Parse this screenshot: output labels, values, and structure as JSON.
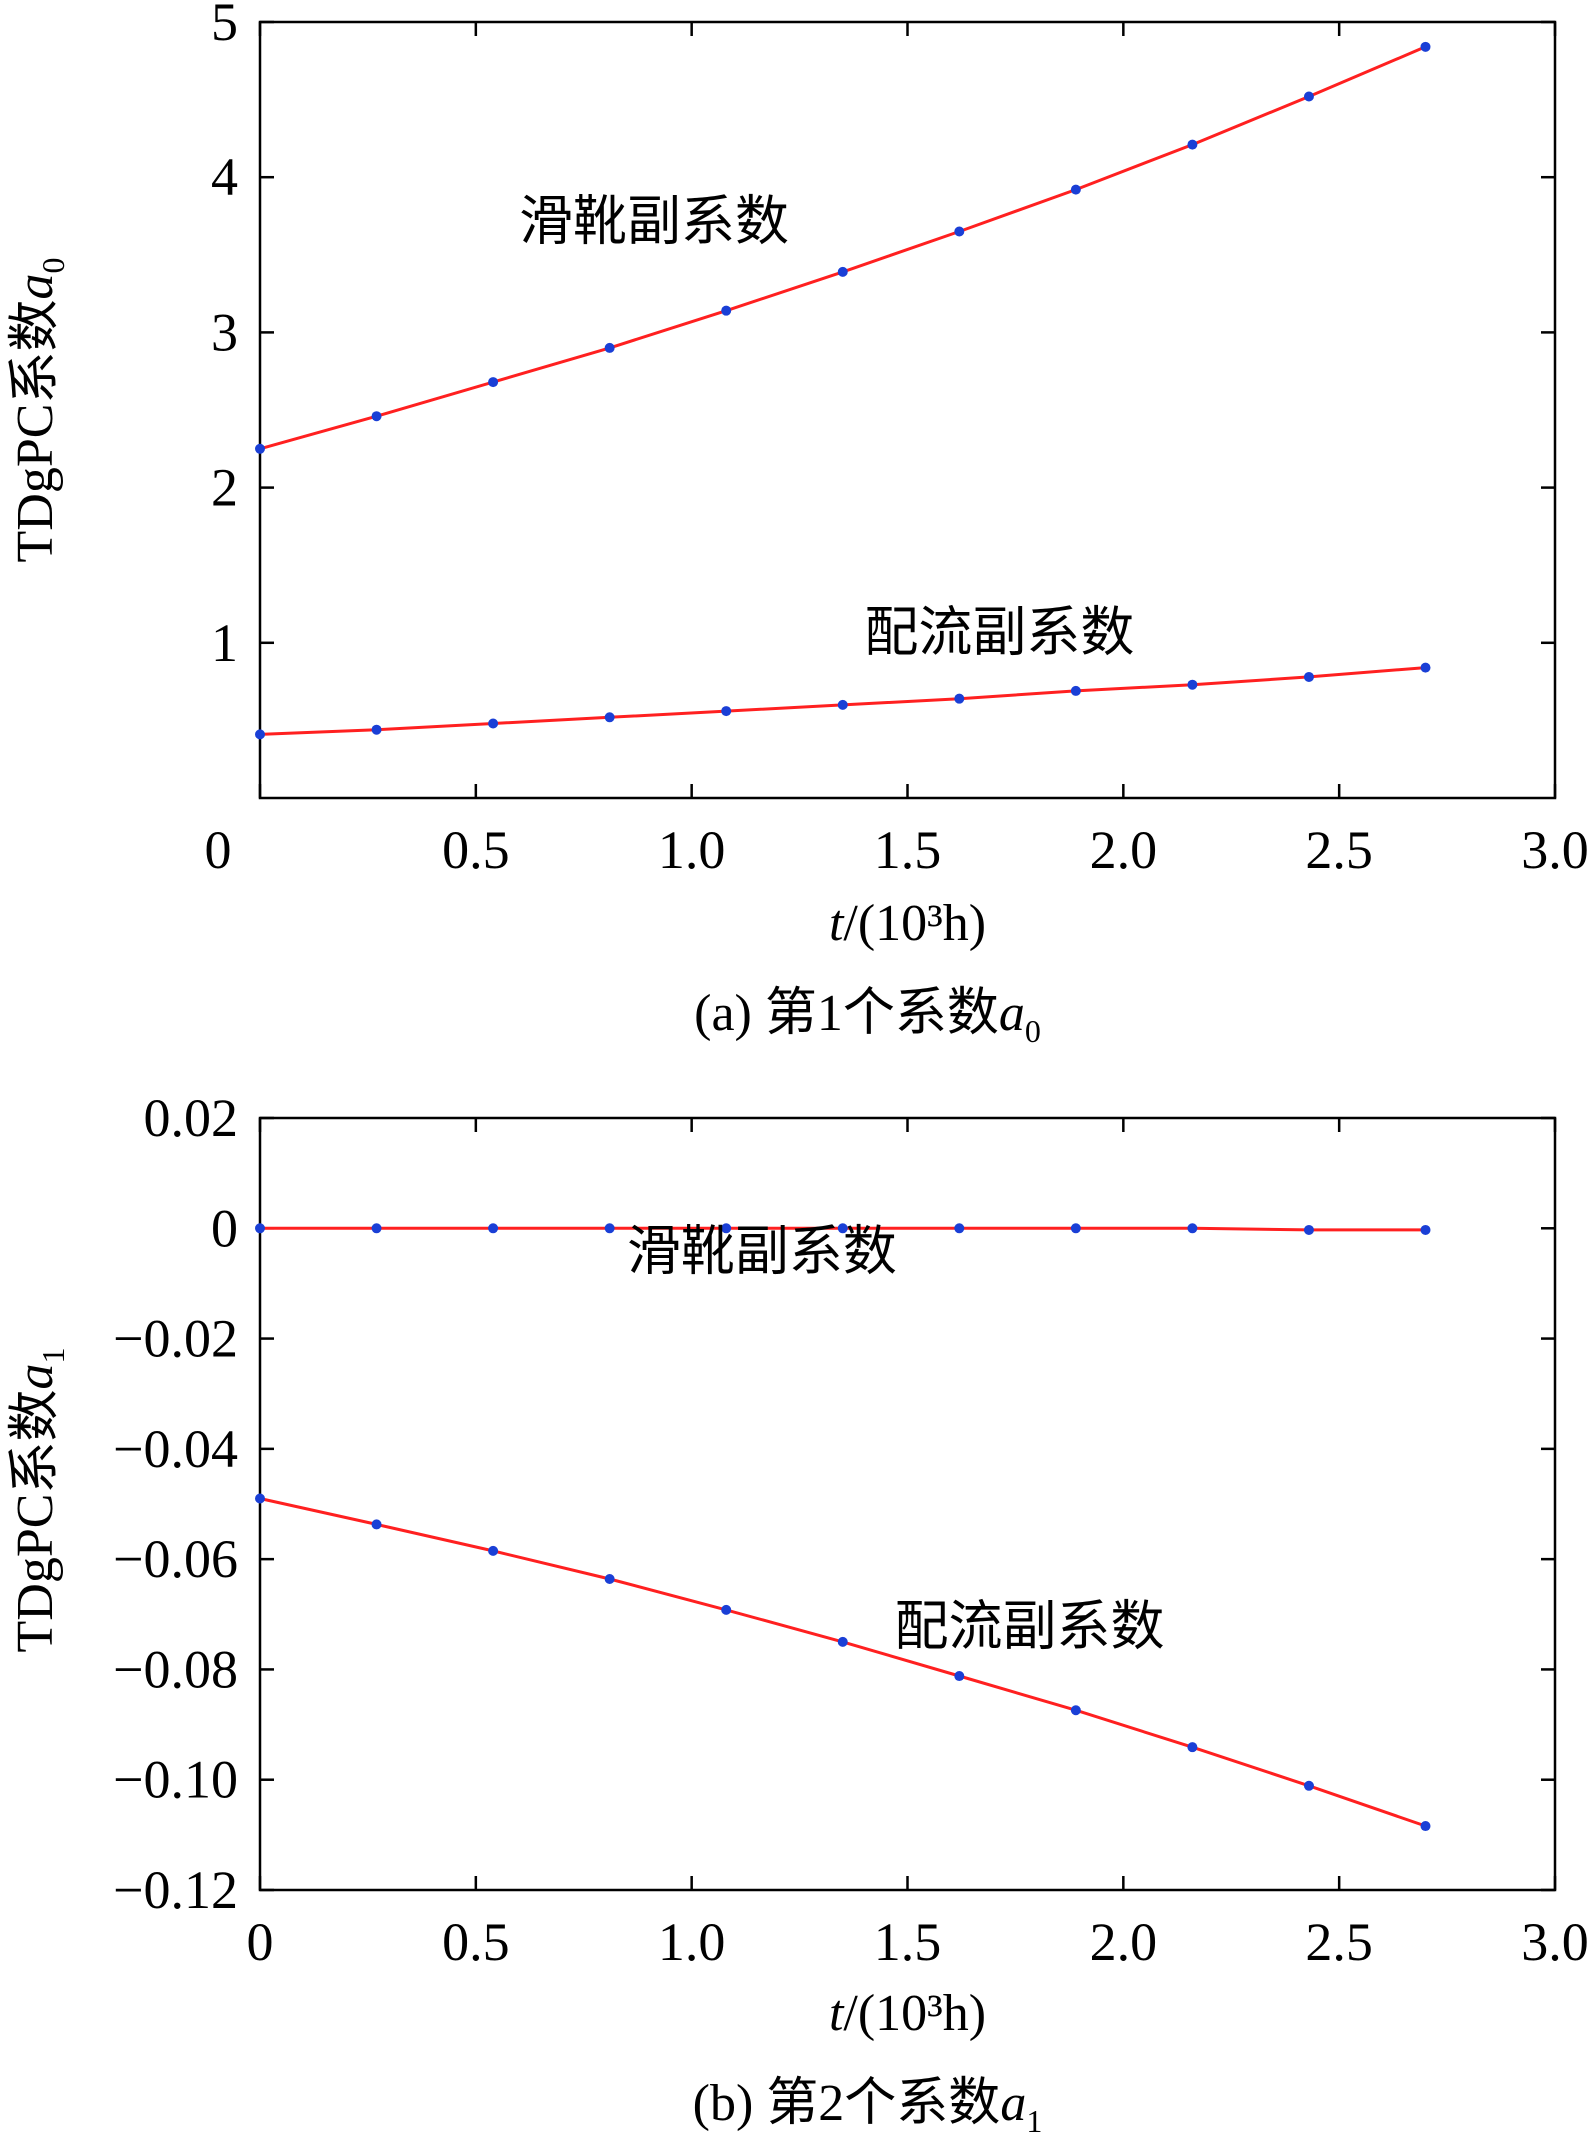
{
  "colors": {
    "series_line": "#ff2020",
    "marker": "#1a3fd6",
    "axis": "#000000"
  },
  "chart_data": [
    {
      "id": "a",
      "type": "line",
      "caption": "(a) 第1个系数",
      "caption_symbol": "a",
      "caption_subscript": "0",
      "xlabel_italic": "t",
      "xlabel_rest": "/(10³h)",
      "ylabel_text": "TDgPC系数",
      "ylabel_symbol": "a",
      "ylabel_subscript": "0",
      "xlim": [
        0,
        3.0
      ],
      "ylim": [
        0,
        5
      ],
      "xticks": [
        {
          "value": 0,
          "label": "0"
        },
        {
          "value": 0.5,
          "label": "0.5"
        },
        {
          "value": 1.0,
          "label": "1.0"
        },
        {
          "value": 1.5,
          "label": "1.5"
        },
        {
          "value": 2.0,
          "label": "2.0"
        },
        {
          "value": 2.5,
          "label": "2.5"
        },
        {
          "value": 3.0,
          "label": "3.0"
        }
      ],
      "yticks": [
        {
          "value": 1,
          "label": "1"
        },
        {
          "value": 2,
          "label": "2"
        },
        {
          "value": 3,
          "label": "3"
        },
        {
          "value": 4,
          "label": "4"
        },
        {
          "value": 5,
          "label": "5"
        }
      ],
      "x": [
        0,
        0.27,
        0.54,
        0.81,
        1.08,
        1.35,
        1.62,
        1.89,
        2.16,
        2.43,
        2.7
      ],
      "series": [
        {
          "name": "滑靴副系数",
          "label_at": [
            0.6,
            3.6
          ],
          "values": [
            2.25,
            2.46,
            2.68,
            2.9,
            3.14,
            3.39,
            3.65,
            3.92,
            4.21,
            4.52,
            4.84
          ]
        },
        {
          "name": "配流副系数",
          "label_at": [
            1.4,
            0.95
          ],
          "values": [
            0.41,
            0.44,
            0.48,
            0.52,
            0.56,
            0.6,
            0.64,
            0.69,
            0.73,
            0.78,
            0.84
          ]
        }
      ]
    },
    {
      "id": "b",
      "type": "line",
      "caption": "(b) 第2个系数",
      "caption_symbol": "a",
      "caption_subscript": "1",
      "xlabel_italic": "t",
      "xlabel_rest": "/(10³h)",
      "ylabel_text": "TDgPC系数",
      "ylabel_symbol": "a",
      "ylabel_subscript": "1",
      "xlim": [
        0,
        3.0
      ],
      "ylim": [
        -0.12,
        0.02
      ],
      "xticks": [
        {
          "value": 0,
          "label": "0"
        },
        {
          "value": 0.5,
          "label": "0.5"
        },
        {
          "value": 1.0,
          "label": "1.0"
        },
        {
          "value": 1.5,
          "label": "1.5"
        },
        {
          "value": 2.0,
          "label": "2.0"
        },
        {
          "value": 2.5,
          "label": "2.5"
        },
        {
          "value": 3.0,
          "label": "3.0"
        }
      ],
      "yticks": [
        {
          "value": -0.12,
          "label": "−0.12"
        },
        {
          "value": -0.1,
          "label": "−0.10"
        },
        {
          "value": -0.08,
          "label": "−0.08"
        },
        {
          "value": -0.06,
          "label": "−0.06"
        },
        {
          "value": -0.04,
          "label": "−0.04"
        },
        {
          "value": -0.02,
          "label": "−0.02"
        },
        {
          "value": 0,
          "label": "0"
        },
        {
          "value": 0.02,
          "label": "0.02"
        }
      ],
      "x": [
        0,
        0.27,
        0.54,
        0.81,
        1.08,
        1.35,
        1.62,
        1.89,
        2.16,
        2.43,
        2.7
      ],
      "series": [
        {
          "name": "滑靴副系数",
          "label_at": [
            0.85,
            -0.0075
          ],
          "values": [
            0.0,
            0.0,
            0.0,
            0.0,
            0.0,
            0.0,
            0.0,
            0.0,
            0.0,
            -0.0003,
            -0.0003
          ]
        },
        {
          "name": "配流副系数",
          "label_at": [
            1.47,
            -0.0755
          ],
          "values": [
            -0.049,
            -0.0537,
            -0.0585,
            -0.0636,
            -0.0692,
            -0.075,
            -0.0812,
            -0.0874,
            -0.0941,
            -0.1011,
            -0.1084
          ]
        }
      ]
    }
  ]
}
